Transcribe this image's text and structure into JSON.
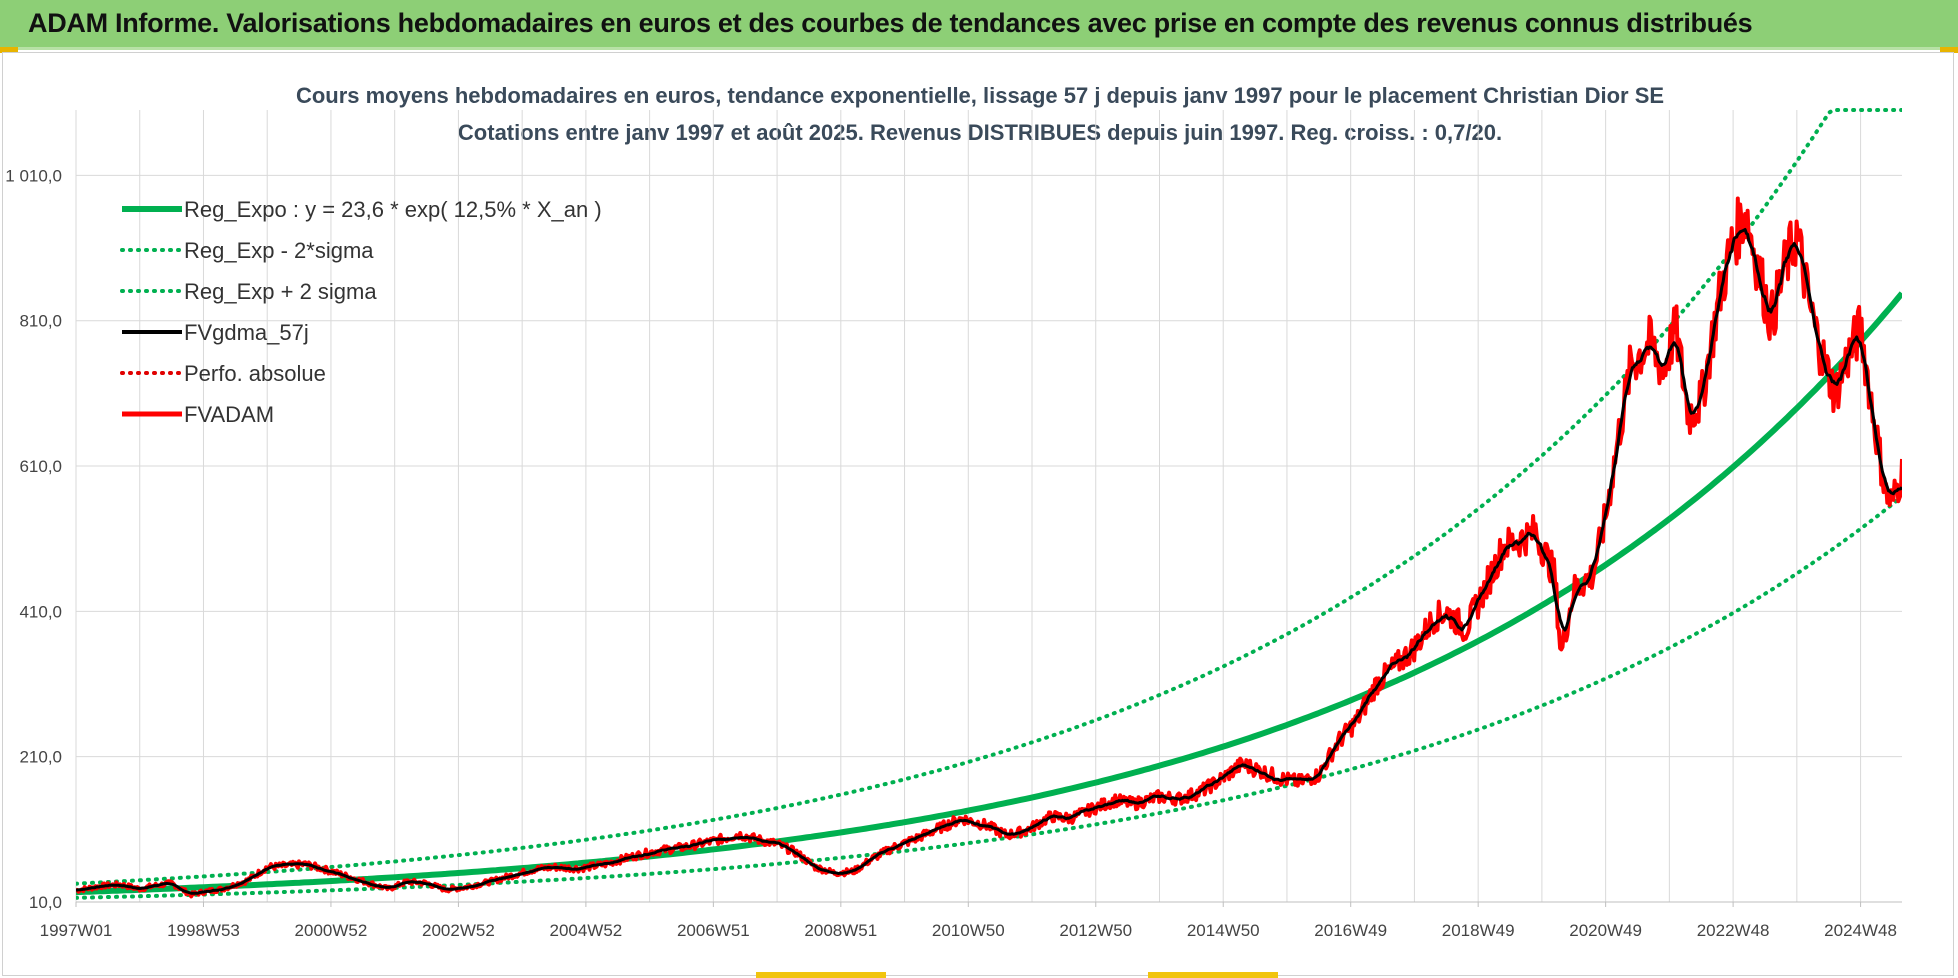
{
  "banner": {
    "title": "ADAM Informe. Valorisations hebdomadaires en euros et des courbes de tendances avec prise en compte des revenus connus distribués"
  },
  "chart_data": {
    "type": "line",
    "title": "Cours moyens hebdomadaires en euros, tendance exponentielle, lissage 57 j depuis janv 1997 pour le placement Christian Dior SE",
    "subtitle": "Cotations entre janv 1997 et août 2025. Revenus DISTRIBUES depuis juin 1997. Reg. croiss. : 0,7/20.",
    "xlabel": "",
    "ylabel": "",
    "xlim": [
      1997.0,
      2025.65
    ],
    "ylim": [
      10,
      1100
    ],
    "y_ticks": [
      10,
      210,
      410,
      610,
      810,
      1010
    ],
    "y_tick_labels": [
      "10,0",
      "210,0",
      "410,0",
      "610,0",
      "810,0",
      "1 010,0"
    ],
    "x_ticks": [
      1997.0,
      1999.0,
      2001.0,
      2003.0,
      2005.0,
      2007.0,
      2009.0,
      2011.0,
      2013.0,
      2015.0,
      2017.0,
      2019.0,
      2021.0,
      2023.0,
      2025.0
    ],
    "x_tick_labels": [
      "1997W01",
      "1998W53",
      "2000W52",
      "2002W52",
      "2004W52",
      "2006W51",
      "2008W51",
      "2010W50",
      "2012W50",
      "2014W50",
      "2016W49",
      "2018W49",
      "2020W49",
      "2022W48",
      "2024W48"
    ],
    "grid": true,
    "legend_position": "top-left",
    "regression": {
      "a": 23.6,
      "rate": 0.125,
      "x0": 1997.0,
      "band_factor": 0.67,
      "cap": 1100
    },
    "series": [
      {
        "name": "Reg_Expo : y = 23,6 * exp( 12,5% *  X_an )",
        "color": "#00b050",
        "style": "solid",
        "width": 6,
        "kind": "reg"
      },
      {
        "name": "Reg_Exp - 2*sigma",
        "color": "#00b050",
        "style": "dotted",
        "width": 4,
        "kind": "lower"
      },
      {
        "name": "Reg_Exp + 2 sigma",
        "color": "#00b050",
        "style": "dotted",
        "width": 4,
        "kind": "upper"
      },
      {
        "name": "FVgdma_57j",
        "color": "#000000",
        "style": "solid",
        "width": 3,
        "kind": "smooth"
      },
      {
        "name": "Perfo. absolue",
        "color": "#e00000",
        "style": "dotted",
        "width": 3,
        "kind": "perfo"
      },
      {
        "name": "FVADAM",
        "color": "#ff0000",
        "style": "solid",
        "width": 4,
        "kind": "price"
      }
    ],
    "price_points": [
      [
        1997.0,
        26
      ],
      [
        1997.4,
        32
      ],
      [
        1997.7,
        34
      ],
      [
        1998.0,
        28
      ],
      [
        1998.2,
        32
      ],
      [
        1998.5,
        36
      ],
      [
        1998.8,
        20
      ],
      [
        1999.0,
        24
      ],
      [
        1999.3,
        28
      ],
      [
        1999.7,
        40
      ],
      [
        2000.0,
        58
      ],
      [
        2000.3,
        60
      ],
      [
        2000.6,
        62
      ],
      [
        2000.9,
        55
      ],
      [
        2001.2,
        47
      ],
      [
        2001.6,
        36
      ],
      [
        2001.9,
        28
      ],
      [
        2002.2,
        38
      ],
      [
        2002.5,
        36
      ],
      [
        2002.8,
        27
      ],
      [
        2003.1,
        30
      ],
      [
        2003.5,
        38
      ],
      [
        2003.9,
        48
      ],
      [
        2004.2,
        55
      ],
      [
        2004.5,
        58
      ],
      [
        2004.9,
        56
      ],
      [
        2005.3,
        62
      ],
      [
        2005.7,
        72
      ],
      [
        2006.1,
        80
      ],
      [
        2006.5,
        85
      ],
      [
        2006.9,
        92
      ],
      [
        2007.2,
        98
      ],
      [
        2007.4,
        103
      ],
      [
        2007.7,
        96
      ],
      [
        2008.0,
        90
      ],
      [
        2008.3,
        78
      ],
      [
        2008.6,
        58
      ],
      [
        2008.9,
        50
      ],
      [
        2009.2,
        52
      ],
      [
        2009.5,
        70
      ],
      [
        2009.8,
        84
      ],
      [
        2010.2,
        98
      ],
      [
        2010.5,
        110
      ],
      [
        2010.9,
        125
      ],
      [
        2011.3,
        115
      ],
      [
        2011.6,
        102
      ],
      [
        2011.9,
        108
      ],
      [
        2012.3,
        128
      ],
      [
        2012.6,
        125
      ],
      [
        2013.0,
        140
      ],
      [
        2013.3,
        150
      ],
      [
        2013.6,
        145
      ],
      [
        2014.0,
        155
      ],
      [
        2014.3,
        152
      ],
      [
        2014.6,
        160
      ],
      [
        2014.9,
        175
      ],
      [
        2015.3,
        200
      ],
      [
        2015.6,
        190
      ],
      [
        2015.9,
        180
      ],
      [
        2016.2,
        175
      ],
      [
        2016.5,
        185
      ],
      [
        2016.8,
        230
      ],
      [
        2017.1,
        260
      ],
      [
        2017.4,
        310
      ],
      [
        2017.7,
        335
      ],
      [
        2018.0,
        360
      ],
      [
        2018.3,
        400
      ],
      [
        2018.5,
        410
      ],
      [
        2018.8,
        385
      ],
      [
        2019.1,
        440
      ],
      [
        2019.4,
        500
      ],
      [
        2019.7,
        510
      ],
      [
        2019.9,
        520
      ],
      [
        2020.2,
        460
      ],
      [
        2020.3,
        350
      ],
      [
        2020.5,
        440
      ],
      [
        2020.8,
        460
      ],
      [
        2021.0,
        540
      ],
      [
        2021.2,
        650
      ],
      [
        2021.4,
        750
      ],
      [
        2021.7,
        780
      ],
      [
        2021.9,
        740
      ],
      [
        2022.1,
        800
      ],
      [
        2022.3,
        680
      ],
      [
        2022.5,
        700
      ],
      [
        2022.8,
        850
      ],
      [
        2023.0,
        920
      ],
      [
        2023.2,
        960
      ],
      [
        2023.4,
        880
      ],
      [
        2023.6,
        810
      ],
      [
        2023.8,
        880
      ],
      [
        2024.0,
        930
      ],
      [
        2024.2,
        830
      ],
      [
        2024.4,
        760
      ],
      [
        2024.6,
        710
      ],
      [
        2024.8,
        760
      ],
      [
        2025.0,
        800
      ],
      [
        2025.2,
        680
      ],
      [
        2025.4,
        570
      ],
      [
        2025.5,
        560
      ],
      [
        2025.65,
        600
      ]
    ]
  }
}
